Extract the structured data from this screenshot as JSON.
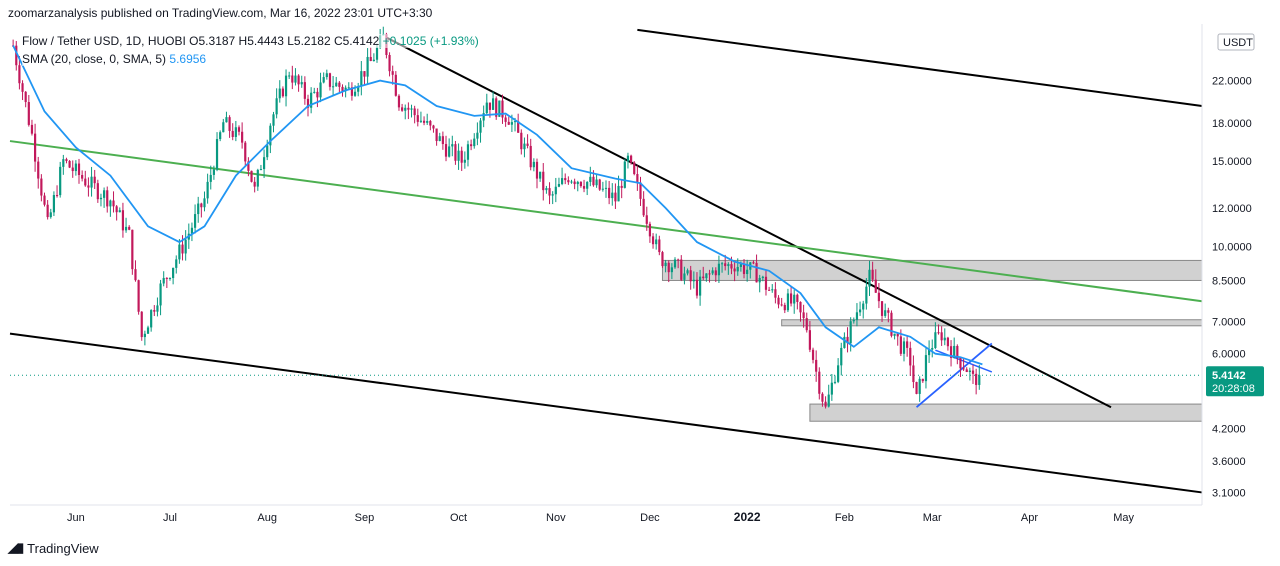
{
  "publisher": "zoomarzanalysis published on TradingView.com, Mar 16, 2022 23:01 UTC+3:30",
  "legend": {
    "symbol": "Flow / Tether USD, 1D, HUOBI",
    "ohlc": "O5.3187 H5.4443 L5.2182 C5.4142",
    "change": "+0.1025 (+1.93%)",
    "sma_label": "SMA (20, close, 0, SMA, 5)",
    "sma_value": "5.6956"
  },
  "footer": {
    "brand": "TradingView"
  },
  "colors": {
    "up": "#089981",
    "down": "#c2185b",
    "sma": "#2196f3",
    "green_line": "#4caf50",
    "trend_black": "#000000",
    "wedge": "#2962ff",
    "zone_fill": "#cccccc",
    "zone_stroke": "#888888",
    "last_price_bg": "#089981"
  },
  "chart_data": {
    "type": "candlestick",
    "scale": "log",
    "currency_badge": "USDT",
    "last_price": 5.4142,
    "last_price_label": "5.4142",
    "countdown": "20:28:08",
    "y_ticks": [
      {
        "value": 22,
        "label": "22.0000"
      },
      {
        "value": 18,
        "label": "18.0000"
      },
      {
        "value": 15,
        "label": "15.0000"
      },
      {
        "value": 12,
        "label": "12.0000"
      },
      {
        "value": 10,
        "label": "10.0000"
      },
      {
        "value": 8.5,
        "label": "8.5000"
      },
      {
        "value": 7,
        "label": "7.0000"
      },
      {
        "value": 6,
        "label": "6.0000"
      },
      {
        "value": 4.2,
        "label": "4.2000"
      },
      {
        "value": 3.6,
        "label": "3.6000"
      },
      {
        "value": 3.1,
        "label": "3.1000"
      }
    ],
    "x_ticks": [
      {
        "date": "2021-06-01",
        "label": "Jun",
        "bold": false
      },
      {
        "date": "2021-07-01",
        "label": "Jul",
        "bold": false
      },
      {
        "date": "2021-08-01",
        "label": "Aug",
        "bold": false
      },
      {
        "date": "2021-09-01",
        "label": "Sep",
        "bold": false
      },
      {
        "date": "2021-10-01",
        "label": "Oct",
        "bold": false
      },
      {
        "date": "2021-11-01",
        "label": "Nov",
        "bold": false
      },
      {
        "date": "2021-12-01",
        "label": "Dec",
        "bold": false
      },
      {
        "date": "2022-01-01",
        "label": "2022",
        "bold": true
      },
      {
        "date": "2022-02-01",
        "label": "Feb",
        "bold": false
      },
      {
        "date": "2022-03-01",
        "label": "Mar",
        "bold": false
      },
      {
        "date": "2022-04-01",
        "label": "Apr",
        "bold": false
      },
      {
        "date": "2022-05-01",
        "label": "May",
        "bold": false
      }
    ],
    "price_path": [
      [
        "2021-05-12",
        26
      ],
      [
        "2021-05-18",
        17
      ],
      [
        "2021-05-23",
        11
      ],
      [
        "2021-05-28",
        15
      ],
      [
        "2021-06-05",
        13.5
      ],
      [
        "2021-06-12",
        12.5
      ],
      [
        "2021-06-18",
        10.5
      ],
      [
        "2021-06-22",
        6.5
      ],
      [
        "2021-06-28",
        8.2
      ],
      [
        "2021-07-05",
        10
      ],
      [
        "2021-07-12",
        12.5
      ],
      [
        "2021-07-18",
        18
      ],
      [
        "2021-07-24",
        16.5
      ],
      [
        "2021-07-28",
        13
      ],
      [
        "2021-08-02",
        18
      ],
      [
        "2021-08-08",
        23
      ],
      [
        "2021-08-14",
        20
      ],
      [
        "2021-08-20",
        22
      ],
      [
        "2021-08-27",
        21
      ],
      [
        "2021-09-03",
        24
      ],
      [
        "2021-09-07",
        27
      ],
      [
        "2021-09-12",
        20
      ],
      [
        "2021-09-20",
        18
      ],
      [
        "2021-09-27",
        16
      ],
      [
        "2021-10-02",
        15
      ],
      [
        "2021-10-10",
        20
      ],
      [
        "2021-10-17",
        18.5
      ],
      [
        "2021-10-24",
        15
      ],
      [
        "2021-10-30",
        12.5
      ],
      [
        "2021-11-05",
        14
      ],
      [
        "2021-11-12",
        13.5
      ],
      [
        "2021-11-20",
        12.5
      ],
      [
        "2021-11-24",
        15
      ],
      [
        "2021-11-30",
        11.5
      ],
      [
        "2021-12-04",
        9.5
      ],
      [
        "2021-12-10",
        9
      ],
      [
        "2021-12-16",
        8.2
      ],
      [
        "2021-12-22",
        9
      ],
      [
        "2021-12-28",
        9.2
      ],
      [
        "2022-01-04",
        8.8
      ],
      [
        "2022-01-10",
        7.8
      ],
      [
        "2022-01-16",
        7.6
      ],
      [
        "2022-01-20",
        6.8
      ],
      [
        "2022-01-23",
        5.5
      ],
      [
        "2022-01-26",
        4.6
      ],
      [
        "2022-01-30",
        5.8
      ],
      [
        "2022-02-03",
        6.8
      ],
      [
        "2022-02-09",
        8.6
      ],
      [
        "2022-02-14",
        7.2
      ],
      [
        "2022-02-18",
        6.4
      ],
      [
        "2022-02-22",
        5.8
      ],
      [
        "2022-02-24",
        4.8
      ],
      [
        "2022-02-28",
        6.2
      ],
      [
        "2022-03-04",
        6.6
      ],
      [
        "2022-03-08",
        6
      ],
      [
        "2022-03-12",
        5.6
      ],
      [
        "2022-03-14",
        5.3
      ],
      [
        "2022-03-16",
        5.4142
      ]
    ],
    "sma_path": [
      [
        "2021-05-12",
        26
      ],
      [
        "2021-05-22",
        19
      ],
      [
        "2021-06-01",
        16
      ],
      [
        "2021-06-12",
        14
      ],
      [
        "2021-06-24",
        11
      ],
      [
        "2021-07-04",
        10.2
      ],
      [
        "2021-07-12",
        11
      ],
      [
        "2021-07-22",
        14
      ],
      [
        "2021-08-02",
        16.5
      ],
      [
        "2021-08-14",
        19.5
      ],
      [
        "2021-08-26",
        21
      ],
      [
        "2021-09-06",
        22
      ],
      [
        "2021-09-14",
        21.5
      ],
      [
        "2021-09-24",
        19.5
      ],
      [
        "2021-10-06",
        18.6
      ],
      [
        "2021-10-16",
        18.8
      ],
      [
        "2021-10-26",
        17
      ],
      [
        "2021-11-06",
        14.5
      ],
      [
        "2021-11-20",
        13.8
      ],
      [
        "2021-11-28",
        13.5
      ],
      [
        "2021-12-06",
        12
      ],
      [
        "2021-12-16",
        10.2
      ],
      [
        "2021-12-28",
        9.3
      ],
      [
        "2022-01-08",
        8.9
      ],
      [
        "2022-01-18",
        8
      ],
      [
        "2022-01-26",
        6.8
      ],
      [
        "2022-02-04",
        6.2
      ],
      [
        "2022-02-12",
        6.8
      ],
      [
        "2022-02-22",
        6.5
      ],
      [
        "2022-03-02",
        6
      ],
      [
        "2022-03-10",
        5.9
      ],
      [
        "2022-03-17",
        5.7
      ]
    ],
    "trendlines": [
      {
        "kind": "channel-top",
        "from": [
          "2021-11-27",
          28
        ],
        "to": [
          "2022-05-26",
          19.5
        ]
      },
      {
        "kind": "channel-bottom",
        "from": [
          "2021-05-11",
          6.6
        ],
        "to": [
          "2022-05-26",
          3.1
        ]
      },
      {
        "kind": "descending-resistance",
        "from": [
          "2021-09-08",
          27
        ],
        "to": [
          "2022-04-27",
          4.65
        ]
      },
      {
        "kind": "green-diagonal",
        "from": [
          "2021-05-11",
          16.5
        ],
        "to": [
          "2022-05-26",
          7.7
        ]
      },
      {
        "kind": "wedge-support",
        "from": [
          "2022-02-24",
          4.65
        ],
        "to": [
          "2022-03-20",
          6.3
        ]
      }
    ],
    "zones": [
      {
        "from": "2021-12-05",
        "to": "2022-05-26",
        "low": 8.5,
        "high": 9.35
      },
      {
        "from": "2022-01-12",
        "to": "2022-05-26",
        "low": 6.85,
        "high": 7.05
      },
      {
        "from": "2022-01-21",
        "to": "2022-05-26",
        "low": 4.35,
        "high": 4.72
      }
    ]
  }
}
